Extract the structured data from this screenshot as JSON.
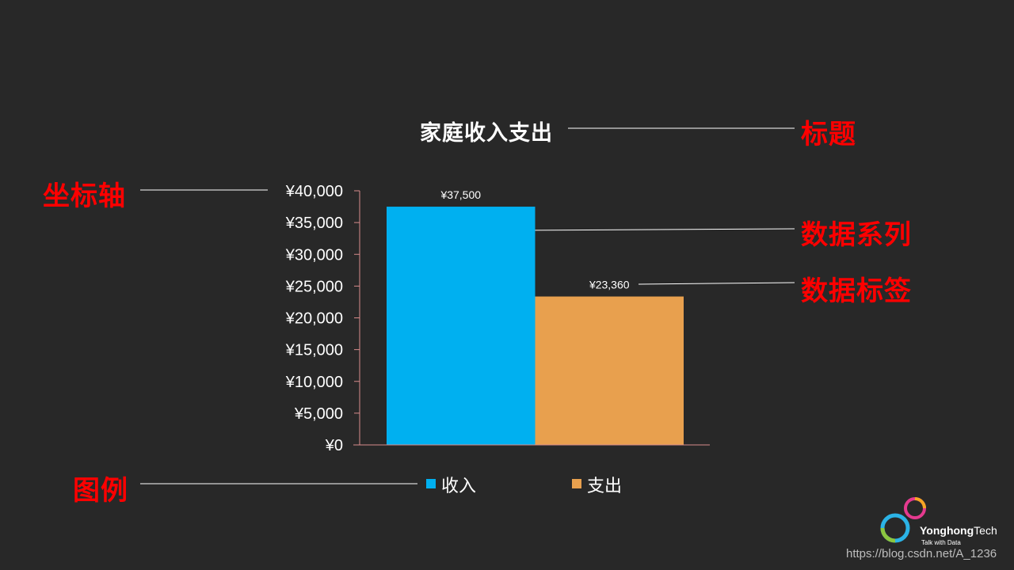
{
  "chart_data": {
    "type": "bar",
    "title": "家庭收入支出",
    "categories": [
      "收入",
      "支出"
    ],
    "values": [
      37500,
      23360
    ],
    "data_labels": [
      "¥37,500",
      "¥23,360"
    ],
    "ylim": [
      0,
      40000
    ],
    "yticks": [
      0,
      5000,
      10000,
      15000,
      20000,
      25000,
      30000,
      35000,
      40000
    ],
    "ytick_labels": [
      "¥0",
      "¥5,000",
      "¥10,000",
      "¥15,000",
      "¥20,000",
      "¥25,000",
      "¥30,000",
      "¥35,000",
      "¥40,000"
    ],
    "legend": [
      {
        "label": "收入",
        "color": "#00b0f0"
      },
      {
        "label": "支出",
        "color": "#e8a04e"
      }
    ],
    "legend_position": "bottom",
    "grid": false,
    "colors": [
      "#00b0f0",
      "#e8a04e"
    ],
    "axis_color": "#d98b8b"
  },
  "callouts": {
    "title": "标题",
    "axis": "坐标轴",
    "series": "数据系列",
    "data_label": "数据标签",
    "legend": "图例"
  },
  "branding": {
    "name_bold": "Yonghong",
    "name_light": "Tech",
    "tagline": "Talk with Data",
    "logo_icon": "yonghong-logo-icon"
  },
  "watermark": "https://blog.csdn.net/A_1236"
}
